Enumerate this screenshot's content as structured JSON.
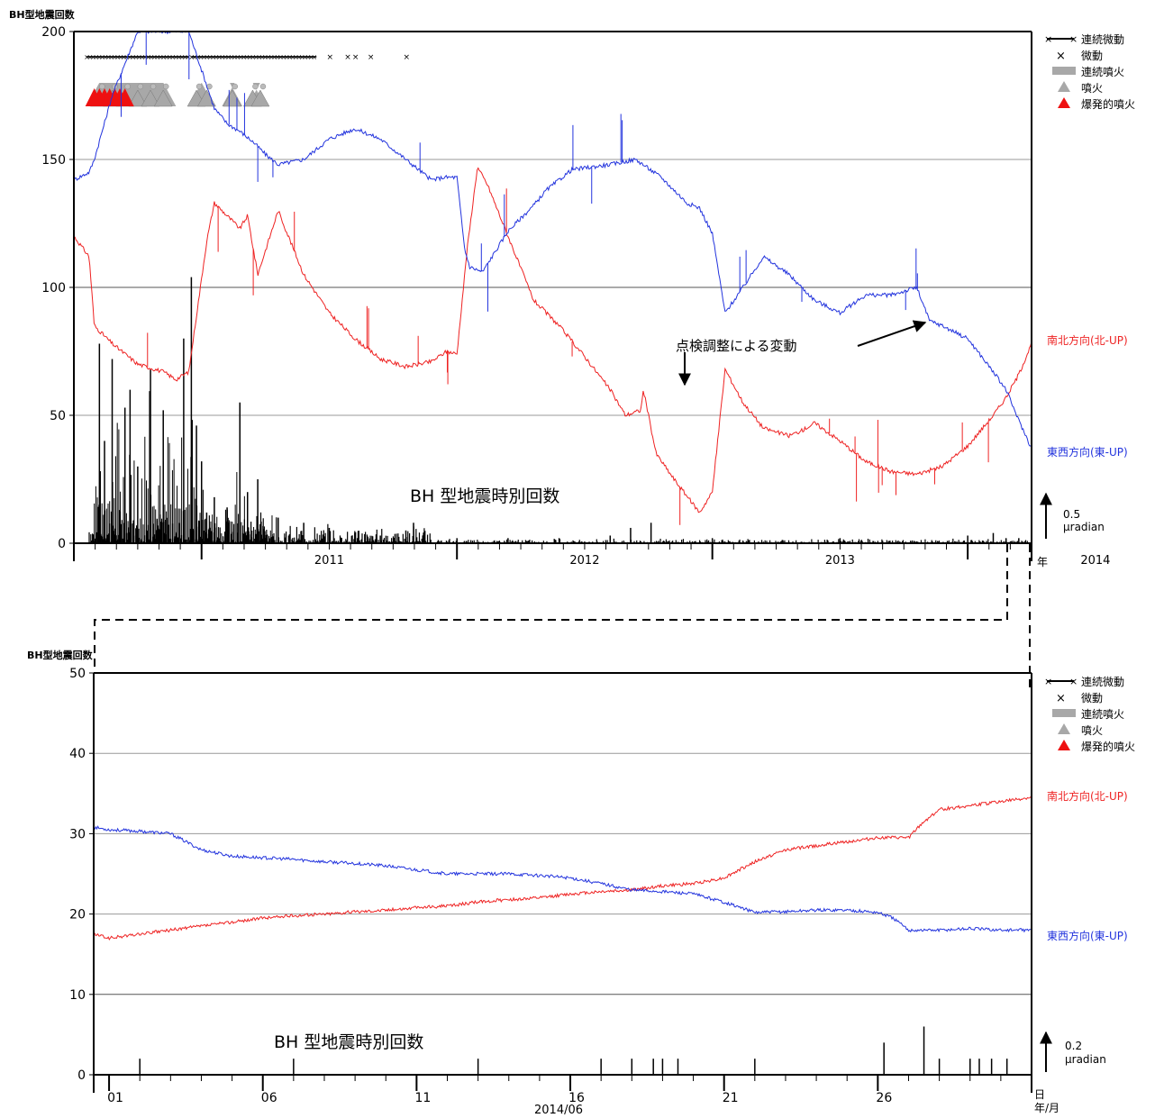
{
  "colors": {
    "ns": "#ee2222",
    "ew": "#2233dd",
    "bars": "#000000",
    "grid": "#999999",
    "gray": "#a8a8a8",
    "explosive": "#ee1111"
  },
  "chart_data": [
    {
      "type": "line",
      "ylabel": "BH型地震回数",
      "ylim": [
        0,
        200
      ],
      "y_ticks": [
        "0",
        "50",
        "100",
        "150",
        "200"
      ],
      "x_ticks": [
        "2011",
        "2012",
        "2013",
        "2014"
      ],
      "x_unit": "年",
      "xlim": [
        2010.5,
        2014.25
      ],
      "grid": "horizontal",
      "legend_position": "top-right",
      "legend": [
        "連続微動",
        "微動",
        "連続噴火",
        "噴火",
        "爆発的噴火"
      ],
      "series": [
        {
          "name": "南北方向(北-UP)",
          "color": "#ee2222",
          "x": [
            2010.5,
            2010.56,
            2010.58,
            2010.65,
            2010.75,
            2010.85,
            2010.9,
            2010.95,
            2011.02,
            2011.05,
            2011.1,
            2011.15,
            2011.18,
            2011.22,
            2011.3,
            2011.4,
            2011.5,
            2011.6,
            2011.7,
            2011.8,
            2011.9,
            2011.96,
            2012.0,
            2012.04,
            2012.08,
            2012.12,
            2012.2,
            2012.3,
            2012.4,
            2012.5,
            2012.6,
            2012.66,
            2012.72,
            2012.73,
            2012.78,
            2012.85,
            2012.95,
            2013.0,
            2013.05,
            2013.12,
            2013.2,
            2013.3,
            2013.35,
            2013.4,
            2013.5,
            2013.6,
            2013.7,
            2013.8,
            2013.9,
            2014.0,
            2014.1,
            2014.15,
            2014.2,
            2014.25
          ],
          "y": [
            120,
            112,
            85,
            78,
            70,
            67,
            64,
            67,
            118,
            133,
            128,
            123,
            128,
            105,
            130,
            105,
            90,
            80,
            72,
            69,
            71,
            75,
            74,
            115,
            147,
            140,
            120,
            95,
            85,
            73,
            60,
            50,
            52,
            60,
            35,
            25,
            12,
            20,
            68,
            55,
            45,
            42,
            44,
            47,
            40,
            32,
            28,
            27,
            30,
            38,
            50,
            57,
            66,
            78
          ]
        },
        {
          "name": "東西方向(東-UP)",
          "color": "#2233dd",
          "x": [
            2010.5,
            2010.56,
            2010.58,
            2010.65,
            2010.75,
            2010.85,
            2010.9,
            2010.95,
            2011.0,
            2011.05,
            2011.1,
            2011.15,
            2011.2,
            2011.25,
            2011.3,
            2011.4,
            2011.5,
            2011.6,
            2011.7,
            2011.8,
            2011.9,
            2011.95,
            2012.0,
            2012.03,
            2012.05,
            2012.1,
            2012.2,
            2012.3,
            2012.35,
            2012.45,
            2012.6,
            2012.7,
            2012.8,
            2012.9,
            2012.95,
            2013.0,
            2013.05,
            2013.12,
            2013.2,
            2013.3,
            2013.4,
            2013.5,
            2013.6,
            2013.7,
            2013.8,
            2013.85,
            2013.9,
            2014.0,
            2014.1,
            2014.15,
            2014.2,
            2014.25
          ],
          "y": [
            142,
            145,
            150,
            175,
            200,
            200,
            200,
            200,
            185,
            170,
            164,
            161,
            157,
            152,
            148,
            150,
            158,
            162,
            158,
            150,
            142,
            143,
            143,
            115,
            108,
            106,
            122,
            132,
            138,
            146,
            148,
            150,
            143,
            133,
            131,
            121,
            90,
            100,
            112,
            105,
            95,
            90,
            97,
            97,
            100,
            87,
            85,
            80,
            67,
            60,
            48,
            37
          ]
        }
      ],
      "hourly_counts": {
        "x": [
          2010.6,
          2010.62,
          2010.65,
          2010.7,
          2010.72,
          2010.75,
          2010.8,
          2010.85,
          2010.93,
          2010.96,
          2010.98,
          2011.0,
          2011.02,
          2011.05,
          2011.1,
          2011.15,
          2011.18,
          2011.22,
          2011.3,
          2011.4,
          2011.5,
          2011.6,
          2011.7,
          2011.8,
          2011.83,
          2012.0,
          2012.2,
          2012.4,
          2012.6,
          2012.68,
          2012.76,
          2013.0,
          2013.5,
          2014.0,
          2014.1,
          2014.15,
          2014.2
        ],
        "y": [
          78,
          40,
          72,
          53,
          60,
          30,
          68,
          52,
          80,
          104,
          46,
          32,
          12,
          18,
          14,
          55,
          20,
          25,
          10,
          8,
          6,
          4,
          3,
          5,
          8,
          2,
          2,
          2,
          3,
          6,
          8,
          2,
          2,
          3,
          4,
          2,
          2
        ]
      },
      "events": {
        "continuous_tremor": [
          [
            2010.55,
            2010.95
          ],
          [
            2010.96,
            2011.45
          ]
        ],
        "tremor": [
          2011.5,
          2011.57,
          2011.6,
          2011.66,
          2011.8
        ],
        "continuous_eruption": [
          [
            2010.55,
            2010.9
          ],
          [
            2010.95,
            2011.05
          ],
          [
            2011.08,
            2011.16
          ],
          [
            2011.18,
            2011.25
          ]
        ],
        "eruption": [
          2010.6,
          2010.65,
          2010.7,
          2010.75,
          2010.8,
          2010.85,
          2010.98,
          2011.02,
          2011.12,
          2011.2,
          2011.23
        ],
        "explosive_eruption": [
          2010.58,
          2010.6,
          2010.62,
          2010.64,
          2010.66,
          2010.68,
          2010.7
        ]
      },
      "annotations": {
        "count_label": "BH 型地震時別回数",
        "arrow_label": "点検調整による変動",
        "scale_value": "0.5",
        "scale_unit": "μradian"
      }
    },
    {
      "type": "line",
      "ylabel": "BH型地震回数",
      "ylim": [
        0,
        50
      ],
      "y_ticks": [
        "0",
        "10",
        "20",
        "30",
        "40",
        "50"
      ],
      "x_ticks": [
        "01",
        "06",
        "11",
        "16",
        "21",
        "26"
      ],
      "x_tick_days": [
        1,
        6,
        11,
        16,
        21,
        26
      ],
      "xlim": [
        0.5,
        31
      ],
      "x_caption": "2014/06",
      "x_unit_top": "日",
      "x_unit_bottom": "年/月",
      "grid": "horizontal",
      "legend_position": "top-right",
      "legend": [
        "連続微動",
        "微動",
        "連続噴火",
        "噴火",
        "爆発的噴火"
      ],
      "series": [
        {
          "name": "南北方向(北-UP)",
          "color": "#ee2222",
          "x": [
            0.5,
            1,
            2,
            3,
            4,
            5,
            6,
            7,
            8,
            9,
            10,
            11,
            12,
            13,
            14,
            15,
            16,
            17,
            18,
            19,
            20,
            21,
            22,
            23,
            24,
            25,
            26,
            27,
            27.5,
            28,
            29,
            30,
            31
          ],
          "y": [
            17.5,
            17,
            17.5,
            18,
            18.5,
            19,
            19.5,
            19.8,
            20,
            20.3,
            20.5,
            20.8,
            21,
            21.5,
            21.8,
            22,
            22.5,
            22.8,
            23,
            23.5,
            23.8,
            24.5,
            26.5,
            28,
            28.5,
            29,
            29.5,
            29.5,
            31.5,
            33,
            33.5,
            34,
            34.5
          ]
        },
        {
          "name": "東西方向(東-UP)",
          "color": "#2233dd",
          "x": [
            0.5,
            1,
            2,
            3,
            4,
            5,
            6,
            7,
            8,
            9,
            10,
            11,
            12,
            13,
            14,
            15,
            16,
            17,
            18,
            19,
            20,
            21,
            22,
            23,
            24,
            25,
            26,
            26.5,
            27,
            28,
            29,
            30,
            31
          ],
          "y": [
            30.8,
            30.5,
            30.3,
            30,
            28,
            27.2,
            27,
            26.8,
            26.5,
            26.3,
            26,
            25.5,
            25,
            25,
            25,
            24.8,
            24.5,
            23.8,
            23,
            22.8,
            22.5,
            21.5,
            20.2,
            20.3,
            20.5,
            20.5,
            20.2,
            19.5,
            18,
            18,
            18.2,
            18,
            18
          ]
        }
      ],
      "hourly_counts": {
        "x": [
          2,
          7,
          13,
          17,
          18,
          18.7,
          19,
          19.5,
          22,
          26.2,
          27.5,
          28,
          29,
          29.3,
          29.7,
          30.2
        ],
        "y": [
          1,
          1,
          1,
          1,
          1,
          1,
          1,
          1,
          1,
          2,
          3,
          1,
          1,
          1,
          1,
          1
        ]
      },
      "annotations": {
        "count_label": "BH 型地震時別回数",
        "scale_value": "0.2",
        "scale_unit": "μradian"
      }
    }
  ]
}
